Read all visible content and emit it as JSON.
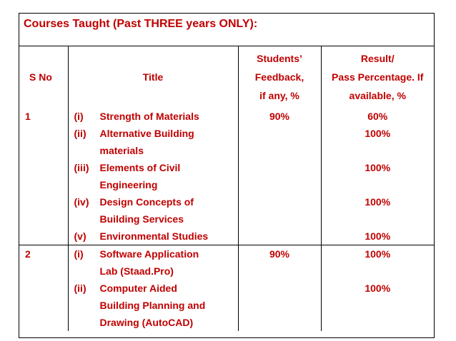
{
  "heading": "Courses Taught (Past THREE years ONLY):",
  "columns": {
    "sno": "S No",
    "title": "Title",
    "feedback": [
      "Students’",
      "Feedback,",
      "if any, %"
    ],
    "result": [
      "Result/",
      "Pass Percentage. If",
      "available, %"
    ]
  },
  "rows": [
    {
      "sno": "1",
      "feedback": "90%",
      "courses": [
        {
          "num": "(i)",
          "lines": [
            "Strength of Materials"
          ],
          "result": "60%"
        },
        {
          "num": "(ii)",
          "lines": [
            "Alternative Building",
            "materials"
          ],
          "result": "100%"
        },
        {
          "num": "(iii)",
          "lines": [
            "Elements of Civil",
            "Engineering"
          ],
          "result": "100%"
        },
        {
          "num": "(iv)",
          "lines": [
            "Design Concepts of",
            "Building Services"
          ],
          "result": "100%"
        },
        {
          "num": "(v)",
          "lines": [
            "Environmental Studies"
          ],
          "result": "100%"
        }
      ]
    },
    {
      "sno": "2",
      "feedback": "90%",
      "courses": [
        {
          "num": "(i)",
          "lines": [
            "Software Application",
            "Lab (Staad.Pro)"
          ],
          "result": "100%"
        },
        {
          "num": "(ii)",
          "lines": [
            "Computer Aided",
            "Building Planning and",
            "Drawing (AutoCAD)"
          ],
          "result": "100%"
        }
      ]
    }
  ]
}
